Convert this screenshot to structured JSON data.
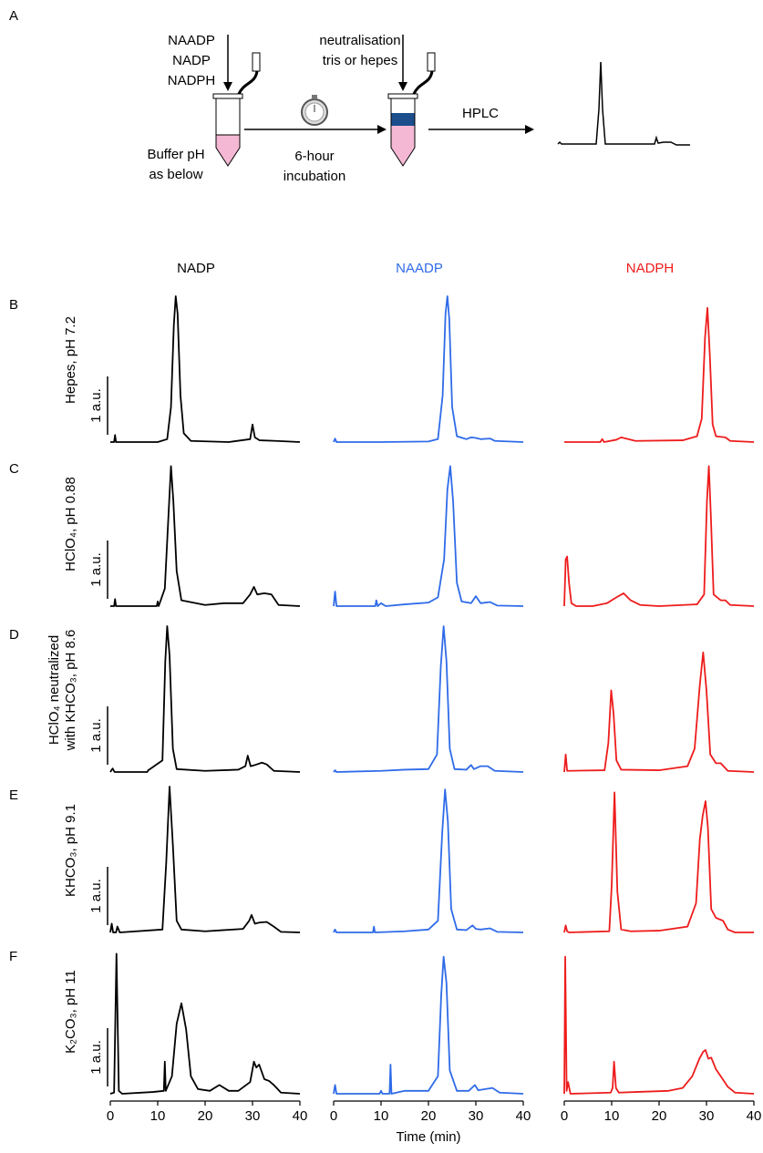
{
  "panel_a": {
    "label": "A",
    "reagents": [
      "NAADP",
      "NADP",
      "NADPH"
    ],
    "buffer": [
      "Buffer pH",
      "as below"
    ],
    "incubation": [
      "6-hour",
      "incubation"
    ],
    "neutralisation": [
      "neutralisation",
      "tris or hepes"
    ],
    "detection": "HPLC"
  },
  "column_titles": [
    {
      "text": "NADP",
      "color": "#000000"
    },
    {
      "text": "NAADP",
      "color": "#2f6be8"
    },
    {
      "text": "NADPH",
      "color": "#ee1c1c"
    }
  ],
  "rows": [
    {
      "letter": "B",
      "label": [
        "Hepes, pH 7.2"
      ]
    },
    {
      "letter": "C",
      "label": [
        "HClO₄, pH 0.88"
      ]
    },
    {
      "letter": "D",
      "label": [
        "HClO₄ neutralized",
        "with KHCO₃, pH 8.6"
      ]
    },
    {
      "letter": "E",
      "label": [
        "KHCO₃, pH 9.1"
      ]
    },
    {
      "letter": "F",
      "label": [
        "K₂CO₃, pH 11"
      ]
    }
  ],
  "x_label": "Time (min)",
  "chart_data": [
    {
      "type": "line",
      "color": "#000000",
      "xlim": [
        0,
        40
      ],
      "ylim": [
        0,
        2.6
      ],
      "scale_bar": {
        "value": 1,
        "label": "1 a.u."
      },
      "x": [
        0,
        0.8,
        1,
        1.2,
        10,
        12,
        12.8,
        13.4,
        13.8,
        14.2,
        14.8,
        15.5,
        17,
        25,
        29.5,
        30,
        30.5,
        31.5,
        35,
        40
      ],
      "values": [
        0,
        0,
        0.12,
        0,
        0,
        0.05,
        0.6,
        2.0,
        2.5,
        2.2,
        0.8,
        0.15,
        0.02,
        0,
        0.05,
        0.3,
        0.08,
        0.03,
        0.02,
        0
      ]
    },
    {
      "type": "line",
      "color": "#2f6be8",
      "xlim": [
        0,
        40
      ],
      "ylim": [
        0,
        2.6
      ],
      "x": [
        0,
        0.3,
        0.6,
        10,
        20,
        22,
        23,
        23.6,
        24,
        24.4,
        25,
        26,
        28,
        29,
        30,
        31,
        33,
        34,
        40
      ],
      "values": [
        0,
        0.06,
        0,
        0,
        0.01,
        0.05,
        0.8,
        2.2,
        2.5,
        2.1,
        0.6,
        0.1,
        0.05,
        0.08,
        0.07,
        0.05,
        0.06,
        0.02,
        0
      ]
    },
    {
      "type": "line",
      "color": "#ee1c1c",
      "xlim": [
        0,
        40
      ],
      "ylim": [
        0,
        2.6
      ],
      "x": [
        0,
        7.6,
        8,
        8.4,
        11,
        12,
        13,
        15,
        25,
        28,
        29,
        29.7,
        30.2,
        30.7,
        31.3,
        32,
        34,
        35,
        40
      ],
      "values": [
        0,
        0,
        0.05,
        0,
        0.04,
        0.08,
        0.06,
        0.02,
        0.03,
        0.1,
        0.4,
        1.8,
        2.3,
        1.5,
        0.3,
        0.1,
        0.08,
        0.02,
        0
      ]
    },
    {
      "type": "line",
      "color": "#000000",
      "xlim": [
        0,
        40
      ],
      "ylim": [
        0,
        2.6
      ],
      "scale_bar": {
        "value": 1,
        "label": "1 a.u."
      },
      "x": [
        0,
        0.8,
        1,
        1.2,
        9.8,
        10,
        10.2,
        11.5,
        12.3,
        12.8,
        13.3,
        14,
        15,
        20,
        24,
        28,
        29.5,
        30.3,
        31,
        32.5,
        34,
        35.5,
        40
      ],
      "values": [
        0,
        0,
        0.12,
        0,
        0,
        0.08,
        0,
        0.3,
        1.6,
        2.4,
        1.8,
        0.6,
        0.1,
        0.02,
        0.05,
        0.05,
        0.2,
        0.33,
        0.2,
        0.22,
        0.2,
        0.02,
        0
      ]
    },
    {
      "type": "line",
      "color": "#2f6be8",
      "xlim": [
        0,
        40
      ],
      "ylim": [
        0,
        2.6
      ],
      "x": [
        0,
        0.3,
        0.6,
        8.8,
        9,
        9.3,
        10,
        11,
        15,
        20,
        22,
        23.3,
        24,
        24.6,
        25.2,
        26,
        27,
        29,
        30,
        31,
        33,
        34.5,
        40
      ],
      "values": [
        0,
        0.25,
        0,
        0,
        0.1,
        0,
        0.05,
        0,
        0.03,
        0.06,
        0.15,
        0.8,
        2.0,
        2.4,
        1.8,
        0.4,
        0.08,
        0.05,
        0.17,
        0.05,
        0.07,
        0.01,
        0
      ]
    },
    {
      "type": "line",
      "color": "#ee1c1c",
      "xlim": [
        0,
        40
      ],
      "ylim": [
        0,
        2.6
      ],
      "x": [
        0,
        0.3,
        0.6,
        1,
        1.5,
        2.5,
        6,
        9,
        11,
        12.5,
        14,
        16,
        20,
        28,
        29.5,
        30.1,
        30.5,
        30.9,
        31.5,
        33,
        34,
        35,
        40
      ],
      "values": [
        0,
        0.8,
        0.85,
        0.4,
        0.05,
        0,
        0,
        0.05,
        0.15,
        0.22,
        0.1,
        0.02,
        0,
        0.03,
        0.2,
        1.8,
        2.4,
        1.6,
        0.2,
        0.1,
        0.1,
        0.02,
        0
      ]
    },
    {
      "type": "line",
      "color": "#000000",
      "xlim": [
        0,
        40
      ],
      "ylim": [
        0,
        2.6
      ],
      "scale_bar": {
        "value": 1,
        "label": "1 a.u."
      },
      "x": [
        0,
        0.5,
        0.9,
        7.8,
        8,
        11,
        11.6,
        12,
        12.5,
        13.2,
        14,
        20,
        27,
        28.5,
        29,
        29.6,
        30.5,
        32,
        33,
        34.5,
        40
      ],
      "values": [
        0,
        0.06,
        0,
        0,
        0.03,
        0.2,
        1.9,
        2.5,
        2,
        0.4,
        0.05,
        0.02,
        0.04,
        0.1,
        0.28,
        0.1,
        0.12,
        0.16,
        0.13,
        0.02,
        0
      ]
    },
    {
      "type": "line",
      "color": "#2f6be8",
      "xlim": [
        0,
        40
      ],
      "ylim": [
        0,
        2.6
      ],
      "x": [
        0,
        0.3,
        0.6,
        10,
        15,
        20,
        21.8,
        22.6,
        23.2,
        23.8,
        24.5,
        25.5,
        28,
        29,
        29.6,
        31,
        32.5,
        34,
        40
      ],
      "values": [
        0,
        0.03,
        0,
        0.02,
        0.04,
        0.05,
        0.3,
        1.8,
        2.5,
        1.9,
        0.4,
        0.05,
        0.04,
        0.12,
        0.05,
        0.1,
        0.1,
        0.02,
        0
      ]
    },
    {
      "type": "line",
      "color": "#ee1c1c",
      "xlim": [
        0,
        40
      ],
      "ylim": [
        0,
        2.6
      ],
      "x": [
        0,
        0.3,
        0.6,
        8.5,
        9.3,
        9.9,
        10.4,
        11,
        12,
        20,
        26,
        27.5,
        28.6,
        29.3,
        30,
        30.8,
        32,
        33,
        34.5,
        40
      ],
      "values": [
        0,
        0.3,
        0.02,
        0.03,
        0.5,
        1.4,
        1,
        0.2,
        0.04,
        0.03,
        0.1,
        0.4,
        1.5,
        2.05,
        1.4,
        0.3,
        0.15,
        0.15,
        0.02,
        0
      ]
    },
    {
      "type": "line",
      "color": "#000000",
      "xlim": [
        0,
        40
      ],
      "ylim": [
        0,
        2.6
      ],
      "scale_bar": {
        "value": 1,
        "label": "1 a.u."
      },
      "x": [
        0,
        0.3,
        0.6,
        1.2,
        1.5,
        2,
        11,
        11.8,
        12.5,
        13.2,
        14,
        15,
        20,
        24,
        28,
        29.3,
        29.8,
        30.5,
        31.5,
        33,
        34.5,
        36,
        40
      ],
      "values": [
        0,
        0.15,
        0,
        0,
        0.1,
        0,
        0.05,
        1.2,
        2.5,
        1.5,
        0.2,
        0.05,
        0.02,
        0.04,
        0.06,
        0.2,
        0.3,
        0.15,
        0.17,
        0.18,
        0.1,
        0.01,
        0
      ]
    },
    {
      "type": "line",
      "color": "#2f6be8",
      "xlim": [
        0,
        40
      ],
      "ylim": [
        0,
        2.6
      ],
      "x": [
        0,
        0.3,
        0.6,
        8.3,
        8.5,
        8.7,
        15,
        20,
        22,
        22.9,
        23.5,
        24.1,
        24.8,
        26,
        28,
        29.3,
        30,
        31,
        33,
        34.5,
        40
      ],
      "values": [
        0,
        0.05,
        0,
        0,
        0.1,
        0,
        0.02,
        0.05,
        0.2,
        1.7,
        2.45,
        1.9,
        0.4,
        0.05,
        0.04,
        0.12,
        0.06,
        0.05,
        0.07,
        0.01,
        0
      ]
    },
    {
      "type": "line",
      "color": "#ee1c1c",
      "xlim": [
        0,
        40
      ],
      "ylim": [
        0,
        2.6
      ],
      "x": [
        0,
        0.3,
        0.6,
        1,
        9.5,
        10,
        10.6,
        11.2,
        12,
        14,
        20,
        26,
        27.8,
        28.6,
        29.2,
        29.8,
        30.3,
        31,
        32,
        33.5,
        34.5,
        36,
        40
      ],
      "values": [
        0,
        0.12,
        0.02,
        0,
        0.02,
        0.8,
        2.4,
        0.7,
        0.05,
        0.02,
        0.03,
        0.1,
        0.5,
        1.6,
        2.0,
        2.25,
        1.8,
        0.4,
        0.25,
        0.2,
        0.05,
        0,
        0
      ]
    },
    {
      "type": "line",
      "color": "#000000",
      "xlim": [
        0,
        40
      ],
      "ylim": [
        0,
        2.6
      ],
      "xticks": [
        0,
        10,
        20,
        30,
        40
      ],
      "scale_bar": {
        "value": 1,
        "label": "1 a.u."
      },
      "x": [
        0,
        0.8,
        1.3,
        1.8,
        2.5,
        9,
        11.3,
        11.5,
        11.7,
        13,
        14,
        15,
        16,
        17,
        18.5,
        21,
        23,
        25,
        27,
        29.5,
        30.3,
        30.8,
        31.4,
        32.5,
        33.5,
        34.5,
        36,
        40
      ],
      "values": [
        0,
        0.02,
        2.4,
        0.05,
        0,
        0.03,
        0.05,
        0.55,
        0.05,
        0.3,
        1.2,
        1.55,
        1.1,
        0.3,
        0.08,
        0.05,
        0.15,
        0.05,
        0.05,
        0.2,
        0.55,
        0.45,
        0.5,
        0.25,
        0.22,
        0.15,
        0.02,
        0
      ]
    },
    {
      "type": "line",
      "color": "#2f6be8",
      "xlim": [
        0,
        40
      ],
      "ylim": [
        0,
        2.6
      ],
      "xticks": [
        0,
        10,
        20,
        30,
        40
      ],
      "x": [
        0,
        0.3,
        0.6,
        9.7,
        10,
        10.3,
        11.8,
        12,
        12.2,
        15,
        20,
        22,
        22.7,
        23.2,
        23.8,
        24.5,
        26,
        28.5,
        29.8,
        30.5,
        32,
        33.5,
        35,
        40
      ],
      "values": [
        0,
        0.15,
        0,
        0,
        0.05,
        0,
        0,
        0.5,
        0,
        0.05,
        0.05,
        0.3,
        1.7,
        2.35,
        1.9,
        0.4,
        0.05,
        0.05,
        0.15,
        0.06,
        0.08,
        0.1,
        0.02,
        0
      ]
    },
    {
      "type": "line",
      "color": "#ee1c1c",
      "xlim": [
        0,
        40
      ],
      "ylim": [
        0,
        2.6
      ],
      "xticks": [
        0,
        10,
        20,
        30,
        40
      ],
      "x": [
        0,
        0.2,
        0.5,
        0.8,
        1.3,
        9.8,
        10.2,
        10.5,
        10.9,
        11.5,
        15,
        22,
        25,
        27,
        28.5,
        29.3,
        29.8,
        30.4,
        31,
        32,
        33,
        34.5,
        36,
        40
      ],
      "values": [
        0,
        2.35,
        0.05,
        0.2,
        0,
        0.02,
        0.1,
        0.55,
        0.1,
        0.02,
        0.03,
        0.05,
        0.1,
        0.3,
        0.6,
        0.72,
        0.75,
        0.6,
        0.62,
        0.42,
        0.3,
        0.12,
        0.02,
        0
      ]
    }
  ]
}
